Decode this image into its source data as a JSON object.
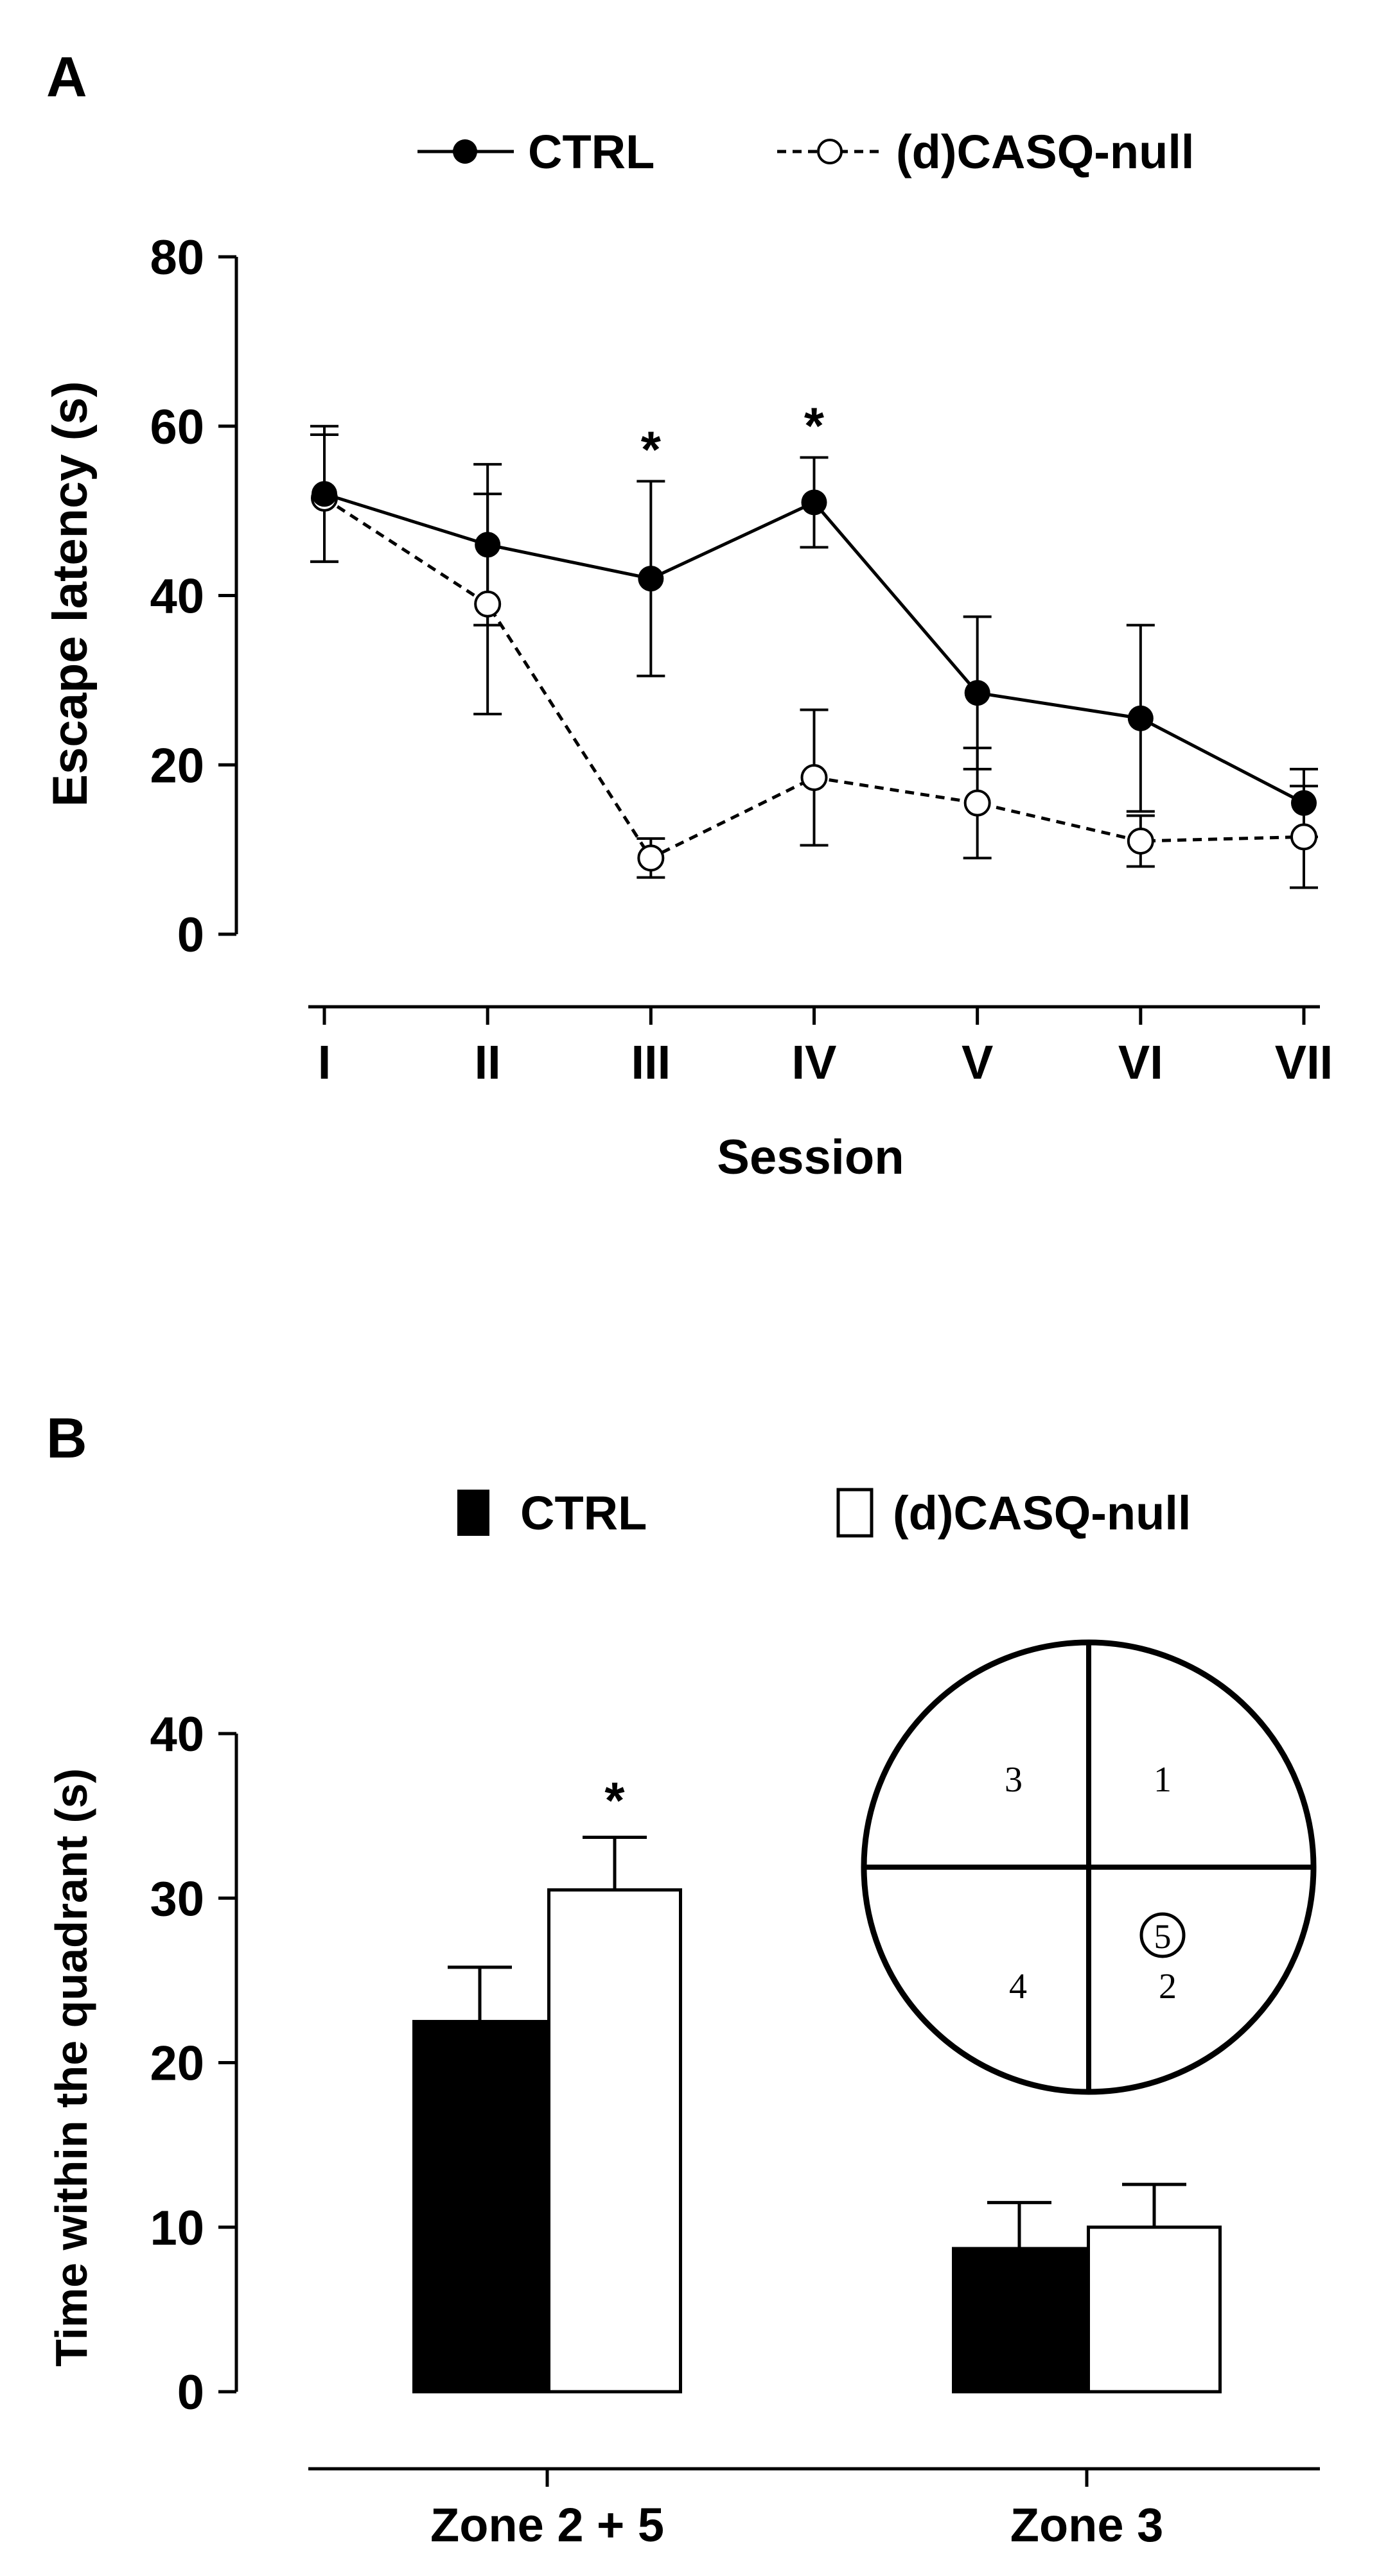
{
  "colors": {
    "ink": "#000000",
    "paper": "#ffffff"
  },
  "chart_data": [
    {
      "panel": "A",
      "type": "line",
      "ylabel": "Escape latency (s)",
      "xlabel": "Session",
      "ylim": [
        0,
        80
      ],
      "yticks": [
        "0",
        "20",
        "40",
        "60",
        "80"
      ],
      "categories": [
        "I",
        "II",
        "III",
        "IV",
        "V",
        "VI",
        "VII"
      ],
      "legend_position": "top",
      "series": [
        {
          "name": "CTRL",
          "marker": "filled",
          "line": "solid",
          "values": [
            52,
            46,
            42,
            51,
            28.5,
            25.5,
            15.5
          ],
          "errors": [
            8,
            9.5,
            11.5,
            5.3,
            9,
            11,
            4
          ]
        },
        {
          "name": "(d)CASQ-null",
          "marker": "open",
          "line": "dashed",
          "values": [
            51.5,
            39,
            9,
            18.5,
            15.5,
            11,
            11.5
          ],
          "errors": [
            7.5,
            13,
            2.3,
            8,
            6.5,
            3,
            6
          ]
        }
      ],
      "annotations": [
        {
          "text": "*",
          "category": "III"
        },
        {
          "text": "*",
          "category": "IV"
        }
      ]
    },
    {
      "panel": "B",
      "type": "bar",
      "ylabel": "Time within the quadrant (s)",
      "ylim": [
        0,
        40
      ],
      "yticks": [
        "0",
        "10",
        "20",
        "30",
        "40"
      ],
      "categories": [
        "Zone 2 + 5",
        "Zone 3"
      ],
      "legend_position": "top",
      "series": [
        {
          "name": "CTRL",
          "fill": "#000000",
          "values": [
            22.5,
            8.7
          ],
          "errors": [
            3.3,
            2.8
          ]
        },
        {
          "name": "(d)CASQ-null",
          "fill": "#ffffff",
          "values": [
            30.5,
            10
          ],
          "errors": [
            3.2,
            2.6
          ]
        }
      ],
      "annotations": [
        {
          "text": "*",
          "category": "Zone 2 + 5",
          "series": "(d)CASQ-null"
        }
      ],
      "inset_quadrant_labels": [
        "3",
        "1",
        "4",
        "2",
        "5"
      ]
    }
  ]
}
